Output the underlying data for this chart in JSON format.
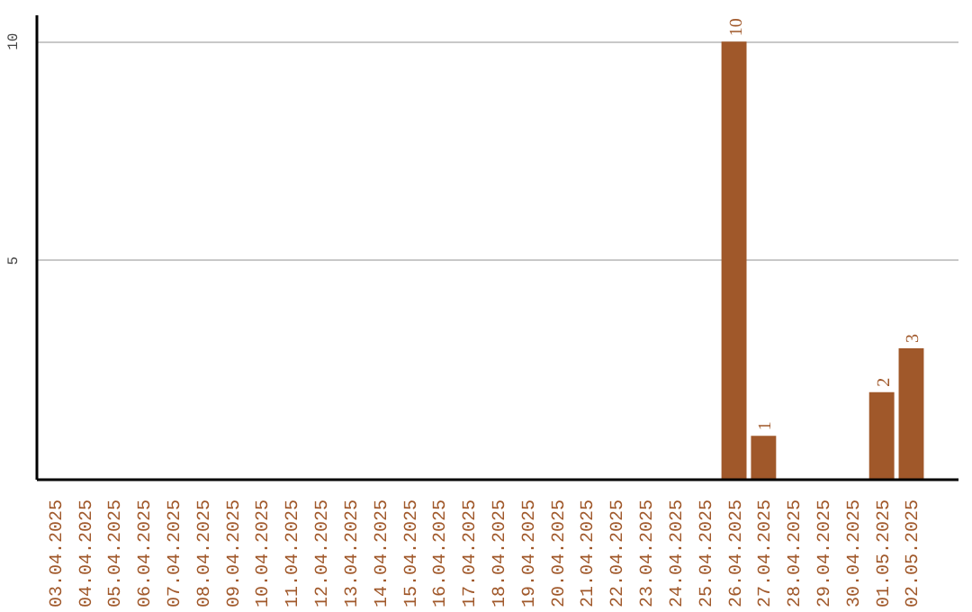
{
  "chart_data": {
    "type": "bar",
    "categories": [
      "03.04.2025",
      "04.04.2025",
      "05.04.2025",
      "06.04.2025",
      "07.04.2025",
      "08.04.2025",
      "09.04.2025",
      "10.04.2025",
      "11.04.2025",
      "12.04.2025",
      "13.04.2025",
      "14.04.2025",
      "15.04.2025",
      "16.04.2025",
      "17.04.2025",
      "18.04.2025",
      "19.04.2025",
      "20.04.2025",
      "21.04.2025",
      "22.04.2025",
      "23.04.2025",
      "24.04.2025",
      "25.04.2025",
      "26.04.2025",
      "27.04.2025",
      "28.04.2025",
      "29.04.2025",
      "30.04.2025",
      "01.05.2025",
      "02.05.2025"
    ],
    "values": [
      0,
      0,
      0,
      0,
      0,
      0,
      0,
      0,
      0,
      0,
      0,
      0,
      0,
      0,
      0,
      0,
      0,
      0,
      0,
      0,
      0,
      0,
      0,
      10,
      1,
      0,
      0,
      0,
      2,
      3
    ],
    "value_labels": [
      null,
      null,
      null,
      null,
      null,
      null,
      null,
      null,
      null,
      null,
      null,
      null,
      null,
      null,
      null,
      null,
      null,
      null,
      null,
      null,
      null,
      null,
      null,
      "10",
      "1",
      null,
      null,
      null,
      "2",
      "3"
    ],
    "color": "#a0582a",
    "ylim": [
      0,
      10.6
    ],
    "yticks": [
      5,
      10
    ],
    "grid": "y"
  }
}
